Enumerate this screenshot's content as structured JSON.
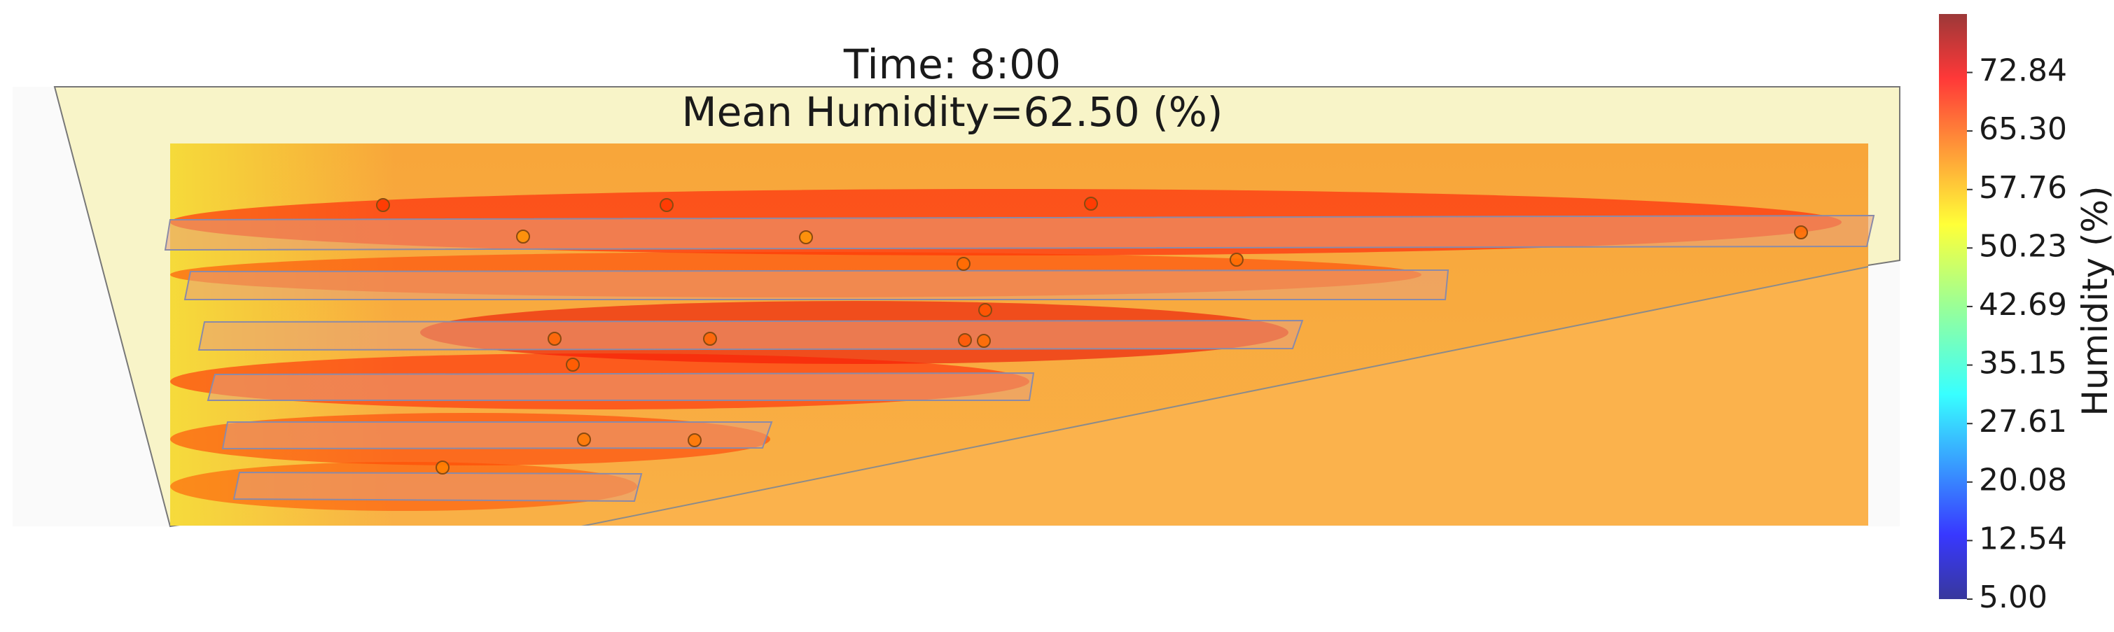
{
  "chart_data": {
    "type": "heatmap",
    "title": "Time: 8:00",
    "subtitle": "Mean Humidity=62.50 (%)",
    "colorbar": {
      "label": "Humidity (%)",
      "min": 5.0,
      "max": 80.37,
      "ticks": [
        "5.00",
        "12.54",
        "20.08",
        "27.61",
        "35.15",
        "42.69",
        "50.23",
        "57.76",
        "65.30",
        "72.84"
      ],
      "colormap": "jet",
      "alpha": 0.75
    },
    "mean_value": 62.5,
    "background_value": 63.0,
    "rows": [
      {
        "value": 70.0
      },
      {
        "value": 66.5
      },
      {
        "value": 72.5
      },
      {
        "value": 69.0
      },
      {
        "value": 67.0
      },
      {
        "value": 65.5
      }
    ],
    "sensors": [
      {
        "id": "s1",
        "value": 66.8
      },
      {
        "id": "s2",
        "value": 66.8
      },
      {
        "id": "s3",
        "value": 66.8
      },
      {
        "id": "s4",
        "value": 60.0
      },
      {
        "id": "s5",
        "value": 60.0
      },
      {
        "id": "s6",
        "value": 63.0
      },
      {
        "id": "s7",
        "value": 63.0
      },
      {
        "id": "s8",
        "value": 63.0
      },
      {
        "id": "s9",
        "value": 64.5
      },
      {
        "id": "s10",
        "value": 63.5
      },
      {
        "id": "s11",
        "value": 63.5
      },
      {
        "id": "s12",
        "value": 63.0
      },
      {
        "id": "s13",
        "value": 64.0
      },
      {
        "id": "s14",
        "value": 62.0
      },
      {
        "id": "s15",
        "value": 62.0
      },
      {
        "id": "s16",
        "value": 61.5
      },
      {
        "id": "s17",
        "value": 64.5
      }
    ]
  }
}
